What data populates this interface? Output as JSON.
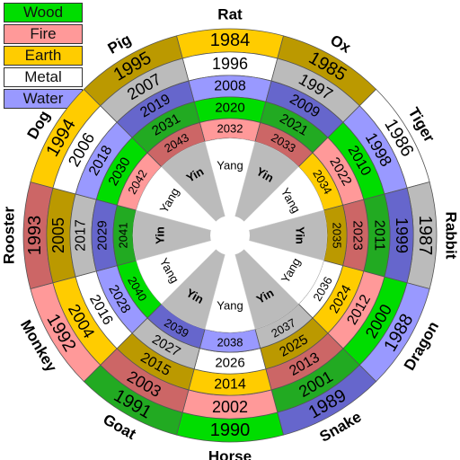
{
  "legend": [
    {
      "label": "Wood",
      "color": "#00dd00"
    },
    {
      "label": "Fire",
      "color": "#ff9999"
    },
    {
      "label": "Earth",
      "color": "#ffcc00"
    },
    {
      "label": "Metal",
      "color": "#ffffff"
    },
    {
      "label": "Water",
      "color": "#9999ff"
    }
  ],
  "animals": [
    "Rat",
    "Ox",
    "Tiger",
    "Rabbit",
    "Dragon",
    "Snake",
    "Horse",
    "Goat",
    "Monkey",
    "Rooster",
    "Dog",
    "Pig"
  ],
  "yinyang": [
    "Yang",
    "Yin",
    "Yang",
    "Yin",
    "Yang",
    "Yin",
    "Yang",
    "Yin",
    "Yang",
    "Yin",
    "Yang",
    "Yin"
  ],
  "rings": [
    [
      "1984",
      "1985",
      "1986",
      "1987",
      "1988",
      "1989",
      "1990",
      "1991",
      "1992",
      "1993",
      "1994",
      "1995"
    ],
    [
      "1996",
      "1997",
      "1998",
      "1999",
      "2000",
      "2001",
      "2002",
      "2003",
      "2004",
      "2005",
      "2006",
      "2007"
    ],
    [
      "2008",
      "2009",
      "2010",
      "2011",
      "2012",
      "2013",
      "2014",
      "2015",
      "2016",
      "2017",
      "2018",
      "2019"
    ],
    [
      "2020",
      "2021",
      "2022",
      "2023",
      "2024",
      "2025",
      "2026",
      "2027",
      "2028",
      "2029",
      "2030",
      "2031"
    ],
    [
      "2032",
      "2033",
      "2034",
      "2035",
      "2036",
      "2037",
      "2038",
      "2039",
      "2040",
      "2041",
      "2042",
      "2043"
    ]
  ],
  "element_cycle": [
    "Wood",
    "Wood",
    "Fire",
    "Fire",
    "Earth",
    "Earth",
    "Metal",
    "Metal",
    "Water",
    "Water"
  ],
  "dark_colors": {
    "Wood": "#22aa22",
    "Fire": "#cc6666",
    "Earth": "#bb9900",
    "Metal": "#bbbbbb",
    "Water": "#6666cc"
  },
  "hub_colors": {
    "light": "#ffffff",
    "dark": "#bbbbbb"
  }
}
